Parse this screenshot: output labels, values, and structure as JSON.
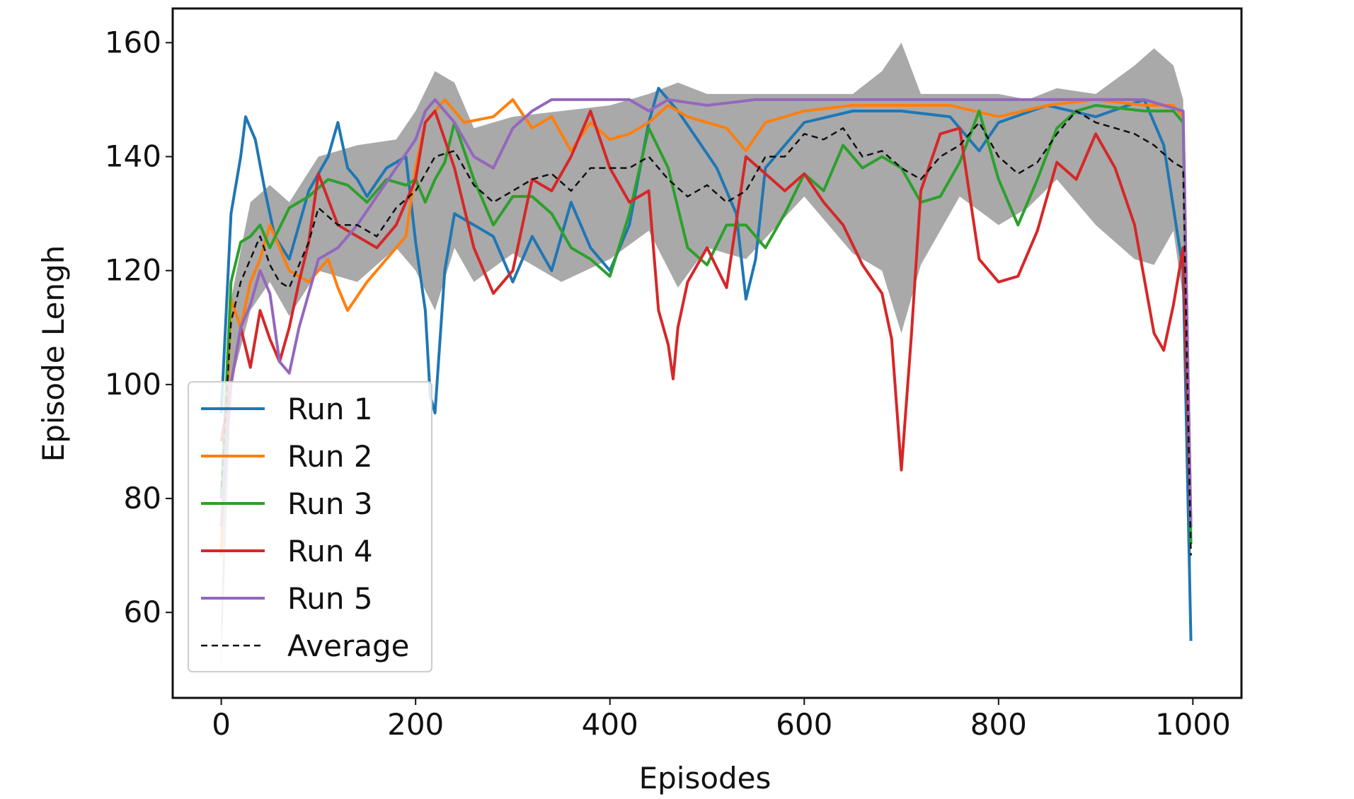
{
  "chart_data": {
    "type": "line",
    "xlabel": "Episodes",
    "ylabel": "Episode Lengh",
    "xlim": [
      -50,
      1050
    ],
    "ylim": [
      45,
      166
    ],
    "xticks": [
      0,
      200,
      400,
      600,
      800,
      1000
    ],
    "yticks": [
      60,
      80,
      100,
      120,
      140,
      160
    ],
    "grid": false,
    "legend_placement": "lower-left",
    "band": {
      "color": "#a9a9a9",
      "x": [
        0,
        10,
        30,
        50,
        70,
        100,
        140,
        180,
        200,
        220,
        240,
        260,
        300,
        350,
        400,
        440,
        470,
        500,
        540,
        600,
        650,
        680,
        700,
        720,
        760,
        800,
        830,
        860,
        900,
        940,
        960,
        980,
        990,
        998
      ],
      "lower": [
        50,
        100,
        113,
        118,
        112,
        120,
        118,
        124,
        120,
        113,
        124,
        118,
        123,
        118,
        122,
        127,
        117,
        124,
        122,
        133,
        123,
        120,
        109,
        121,
        133,
        128,
        131,
        136,
        128,
        122,
        121,
        127,
        115,
        55
      ],
      "upper": [
        60,
        115,
        132,
        135,
        132,
        140,
        142,
        143,
        148,
        155,
        153,
        145,
        147,
        148,
        149,
        151,
        153,
        151,
        151,
        151,
        151,
        155,
        160,
        151,
        151,
        151,
        150,
        152,
        151,
        156,
        159,
        156,
        150,
        70
      ]
    },
    "series": [
      {
        "name": "Run 1",
        "color": "#1f77b4",
        "x": [
          0,
          10,
          20,
          25,
          35,
          45,
          55,
          70,
          90,
          110,
          120,
          130,
          140,
          150,
          170,
          190,
          200,
          210,
          215,
          220,
          230,
          240,
          260,
          280,
          300,
          320,
          340,
          360,
          380,
          400,
          420,
          440,
          450,
          470,
          490,
          510,
          530,
          540,
          550,
          560,
          600,
          650,
          700,
          750,
          780,
          800,
          850,
          900,
          950,
          970,
          990,
          998
        ],
        "y": [
          95,
          130,
          140,
          147,
          143,
          134,
          126,
          122,
          134,
          140,
          146,
          138,
          136,
          133,
          138,
          140,
          125,
          113,
          98,
          95,
          120,
          130,
          128,
          126,
          118,
          126,
          120,
          132,
          124,
          120,
          128,
          146,
          152,
          148,
          143,
          138,
          130,
          115,
          122,
          138,
          146,
          148,
          148,
          147,
          141,
          146,
          149,
          147,
          150,
          142,
          120,
          55
        ]
      },
      {
        "name": "Run 2",
        "color": "#ff7f0e",
        "x": [
          0,
          10,
          20,
          30,
          40,
          50,
          60,
          70,
          90,
          110,
          120,
          130,
          150,
          170,
          190,
          200,
          210,
          230,
          250,
          280,
          300,
          320,
          340,
          360,
          380,
          400,
          420,
          440,
          460,
          480,
          500,
          520,
          540,
          560,
          600,
          650,
          700,
          750,
          800,
          850,
          900,
          950,
          980,
          990,
          998
        ],
        "y": [
          70,
          115,
          110,
          118,
          122,
          128,
          124,
          120,
          118,
          122,
          117,
          113,
          118,
          122,
          126,
          138,
          146,
          150,
          146,
          147,
          150,
          145,
          147,
          141,
          146,
          143,
          144,
          146,
          149,
          147,
          146,
          145,
          141,
          146,
          148,
          149,
          149,
          149,
          147,
          149,
          150,
          149,
          149,
          147,
          75
        ]
      },
      {
        "name": "Run 3",
        "color": "#2ca02c",
        "x": [
          0,
          10,
          20,
          30,
          40,
          50,
          70,
          90,
          110,
          130,
          150,
          170,
          190,
          200,
          210,
          220,
          230,
          240,
          260,
          280,
          300,
          320,
          340,
          360,
          380,
          400,
          420,
          440,
          460,
          480,
          500,
          520,
          540,
          560,
          580,
          600,
          620,
          640,
          660,
          680,
          700,
          720,
          740,
          760,
          780,
          800,
          820,
          840,
          860,
          880,
          900,
          950,
          980,
          990,
          998
        ],
        "y": [
          80,
          118,
          125,
          126,
          128,
          124,
          131,
          133,
          136,
          135,
          132,
          136,
          135,
          136,
          132,
          136,
          139,
          146,
          136,
          128,
          133,
          133,
          130,
          124,
          122,
          119,
          130,
          145,
          138,
          124,
          121,
          128,
          128,
          124,
          130,
          137,
          134,
          142,
          138,
          140,
          138,
          132,
          133,
          139,
          148,
          136,
          128,
          136,
          145,
          148,
          149,
          148,
          148,
          146,
          72
        ]
      },
      {
        "name": "Run 4",
        "color": "#d62728",
        "x": [
          0,
          10,
          20,
          30,
          40,
          50,
          60,
          70,
          80,
          90,
          100,
          120,
          140,
          160,
          180,
          200,
          210,
          220,
          240,
          260,
          280,
          300,
          320,
          340,
          360,
          380,
          400,
          420,
          440,
          450,
          460,
          465,
          470,
          480,
          500,
          520,
          540,
          560,
          580,
          600,
          620,
          640,
          660,
          680,
          690,
          700,
          710,
          720,
          740,
          760,
          780,
          800,
          820,
          840,
          860,
          880,
          900,
          920,
          940,
          960,
          970,
          980,
          990,
          998
        ],
        "y": [
          90,
          100,
          110,
          103,
          113,
          108,
          104,
          110,
          118,
          125,
          137,
          128,
          126,
          124,
          128,
          136,
          146,
          148,
          138,
          124,
          116,
          120,
          136,
          134,
          140,
          148,
          138,
          132,
          134,
          113,
          107,
          101,
          110,
          118,
          124,
          117,
          140,
          137,
          134,
          137,
          132,
          128,
          121,
          116,
          108,
          85,
          108,
          134,
          144,
          145,
          122,
          118,
          119,
          127,
          139,
          136,
          144,
          138,
          128,
          109,
          106,
          114,
          124,
          75
        ]
      },
      {
        "name": "Run 5",
        "color": "#9467bd",
        "x": [
          0,
          10,
          20,
          30,
          40,
          50,
          60,
          70,
          80,
          90,
          100,
          120,
          140,
          160,
          180,
          200,
          210,
          220,
          240,
          260,
          280,
          300,
          320,
          340,
          380,
          420,
          440,
          460,
          500,
          550,
          600,
          700,
          800,
          900,
          950,
          990,
          998
        ],
        "y": [
          75,
          100,
          110,
          114,
          120,
          116,
          104,
          102,
          110,
          116,
          122,
          124,
          128,
          133,
          138,
          143,
          148,
          150,
          146,
          140,
          138,
          145,
          148,
          150,
          150,
          150,
          148,
          150,
          149,
          150,
          150,
          150,
          150,
          150,
          150,
          148,
          75
        ]
      },
      {
        "name": "Average",
        "color": "#111111",
        "dashed": true,
        "x": [
          0,
          10,
          20,
          30,
          40,
          50,
          60,
          70,
          80,
          90,
          100,
          120,
          140,
          160,
          180,
          200,
          220,
          240,
          260,
          280,
          300,
          320,
          340,
          360,
          380,
          400,
          420,
          440,
          460,
          480,
          500,
          520,
          540,
          560,
          580,
          600,
          620,
          640,
          660,
          680,
          700,
          720,
          740,
          760,
          780,
          800,
          820,
          840,
          860,
          880,
          900,
          920,
          940,
          960,
          980,
          990,
          998
        ],
        "y": [
          82,
          111,
          118,
          122,
          126,
          121,
          118,
          117,
          121,
          125,
          131,
          128,
          128,
          126,
          131,
          134,
          140,
          141,
          135,
          132,
          134,
          136,
          137,
          134,
          138,
          138,
          138,
          140,
          136,
          133,
          135,
          132,
          134,
          140,
          140,
          144,
          143,
          145,
          140,
          141,
          138,
          136,
          140,
          142,
          146,
          140,
          137,
          139,
          144,
          148,
          146,
          145,
          144,
          142,
          139,
          138,
          70
        ]
      }
    ]
  }
}
